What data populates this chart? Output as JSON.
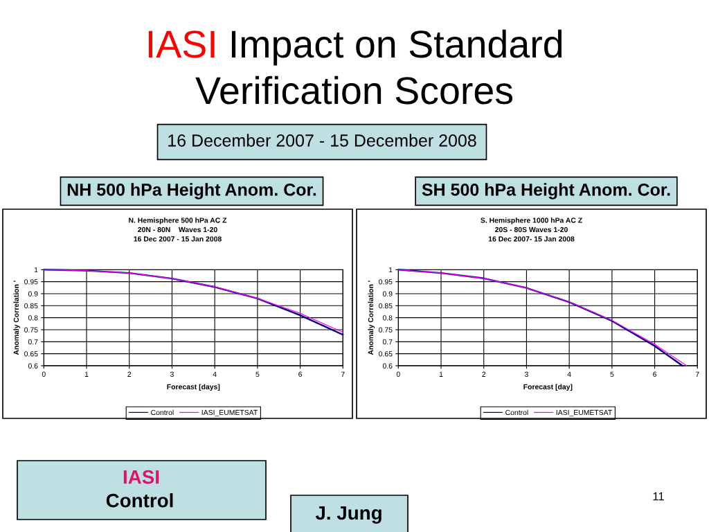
{
  "chart_data": [
    {
      "type": "other",
      "title": "IASI Impact on Standard\nVerification Scores",
      "subtitle": "16 December 2007 - 15 December 2008"
    },
    {
      "type": "line",
      "title": "NH 500 hPa Height Anom. Cor.",
      "subtitle": "N. Hemisphere 500 hPa AC Z\n20N - 80N    Waves 1-20\n16 Dec 2007 - 15 Jan 2008",
      "xlabel": "Forecast [days]",
      "ylabel": "Anomaly Correlation '",
      "x": [
        0,
        1,
        2,
        3,
        4,
        5,
        6,
        7
      ],
      "series": [
        {
          "name": "Control",
          "color": "#000080",
          "values": [
            1,
            0.996,
            0.986,
            0.963,
            0.928,
            0.88,
            0.81,
            0.729
          ]
        },
        {
          "name": "IASI_EUMETSAT",
          "color": "#ff00ff",
          "values": [
            1,
            0.996,
            0.986,
            0.963,
            0.929,
            0.881,
            0.818,
            0.739
          ]
        }
      ],
      "xlim": [
        0,
        7
      ],
      "ylim": [
        0.6,
        1
      ],
      "xticks": [
        0,
        1,
        2,
        3,
        4,
        5,
        6,
        7
      ],
      "yticks": [
        0.6,
        0.65,
        0.7,
        0.75,
        0.8,
        0.85,
        0.9,
        0.95,
        1
      ],
      "grid": true,
      "legend": "bottom"
    },
    {
      "type": "line",
      "title": "SH 500 hPa Height Anom. Cor.",
      "subtitle": "S. Hemisphere 1000 hPa AC Z\n20S - 80S Waves 1-20\n16 Dec 2007- 15 Jan 2008",
      "xlabel": "Forecast [day]",
      "ylabel": "Anomaly Correlation '",
      "series": [
        {
          "name": "Control",
          "color": "#000080",
          "x": [
            0,
            1,
            2,
            3,
            4,
            5,
            6,
            6.65
          ],
          "values": [
            1,
            0.986,
            0.964,
            0.924,
            0.865,
            0.787,
            0.682,
            0.6
          ]
        },
        {
          "name": "IASI_EUMETSAT",
          "color": "#ff00ff",
          "x": [
            0,
            1,
            2,
            3,
            4,
            5,
            6,
            6.75
          ],
          "values": [
            1,
            0.986,
            0.964,
            0.924,
            0.866,
            0.789,
            0.689,
            0.6
          ]
        }
      ],
      "xlim": [
        0,
        7
      ],
      "ylim": [
        0.6,
        1
      ],
      "xticks": [
        0,
        1,
        2,
        3,
        4,
        5,
        6,
        7
      ],
      "yticks": [
        0.6,
        0.65,
        0.7,
        0.75,
        0.8,
        0.85,
        0.9,
        0.95,
        1
      ],
      "grid": true,
      "legend": "bottom"
    },
    {
      "type": "other",
      "annotations": [
        "IASI",
        "Control",
        "J. Jung",
        "11"
      ]
    }
  ]
}
